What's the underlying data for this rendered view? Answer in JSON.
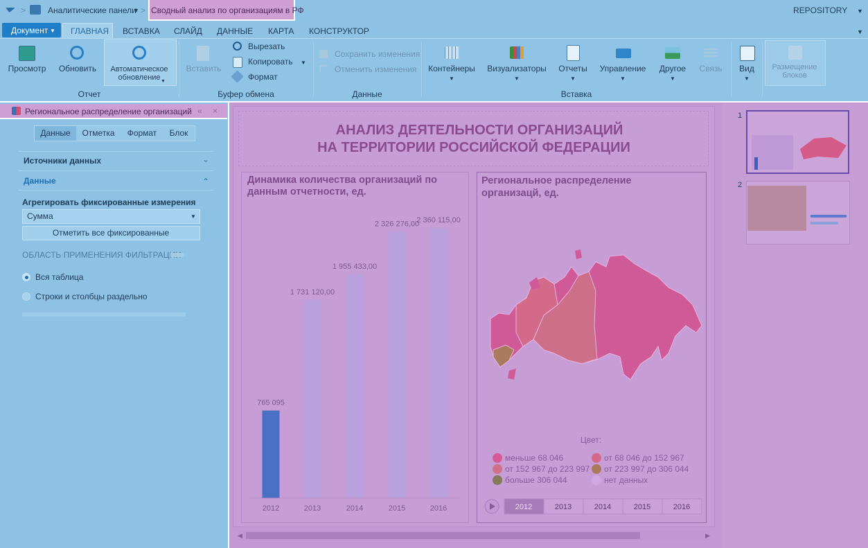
{
  "header": {
    "breadcrumb": [
      "Аналитические панели",
      "Сводный анализ по организациям в РФ"
    ],
    "repository": "REPOSITORY"
  },
  "ribbon": {
    "document": "Документ",
    "tabs": [
      "ГЛАВНАЯ",
      "ВСТАВКА",
      "СЛАЙД",
      "ДАННЫЕ",
      "КАРТА",
      "КОНСТРУКТОР"
    ],
    "groups": [
      {
        "label": "Отчет",
        "buttons": [
          "Просмотр",
          "Обновить",
          "Автоматическое обновление"
        ]
      },
      {
        "label": "Буфер обмена",
        "buttons": [
          "Вставить",
          "Вырезать",
          "Копировать",
          "Формат"
        ]
      },
      {
        "label": "Данные",
        "buttons": [
          "Сохранить изменения",
          "Отменить изменения"
        ]
      },
      {
        "label": "Вставка",
        "buttons": [
          "Контейнеры",
          "Визуализаторы",
          "Отчеты",
          "Управление",
          "Другое",
          "Связь"
        ]
      },
      {
        "buttons": [
          "Вид",
          "Размещение блоков"
        ]
      }
    ]
  },
  "panel": {
    "title": "Региональное распределение организаций",
    "tabs": [
      "Данные",
      "Отметка",
      "Формат",
      "Блок"
    ],
    "sections": [
      "Источники данных",
      "Данные"
    ],
    "aggregate_label": "Агрегировать фиксированные измерения",
    "aggregate_value": "Сумма",
    "mark_all": "Отметить все фиксированные",
    "filter_scope": "ОБЛАСТЬ ПРИМЕНЕНИЯ ФИЛЬТРАЦИИ",
    "options": [
      "Вся таблица",
      "Строки и столбцы раздельно"
    ]
  },
  "slide": {
    "title": [
      "АНАЛИЗ ДЕЯТЕЛЬНОСТИ ОРГАНИЗАЦИЙ",
      "НА ТЕРРИТОРИИ РОССИЙСКОЙ ФЕДЕРАЦИИ"
    ],
    "map": {
      "title": "Региональное распределение организацй, ед.",
      "legend_title": "Цвет:",
      "legend": [
        {
          "name": "меньше 68 046",
          "color": "#d65a98"
        },
        {
          "name": "от 68 046 до 152 967",
          "color": "#d46a8a"
        },
        {
          "name": "от 152 967 до 223 997",
          "color": "#cf6f88"
        },
        {
          "name": "от 223 997 до 306 044",
          "color": "#a97a5c"
        },
        {
          "name": "больше 306 044",
          "color": "#827a58"
        },
        {
          "name": "нет данных",
          "color": "#d0a9e2"
        }
      ],
      "years": [
        "2012",
        "2013",
        "2014",
        "2015",
        "2016"
      ]
    },
    "thumbnails": [
      "1",
      "2"
    ]
  },
  "chart_data": {
    "type": "bar",
    "title": "Динамика количества организаций по данным отчетности, ед.",
    "categories": [
      "2012",
      "2013",
      "2014",
      "2015",
      "2016"
    ],
    "values": [
      765095,
      1731120,
      1955433,
      2326276,
      2360115
    ],
    "value_labels": [
      "765 095",
      "1 731 120,00",
      "1 955 433,00",
      "2 326 276,00",
      "2 360 115,00"
    ],
    "colors": [
      "#4a70c4",
      "#b9a2dd",
      "#b9a2dd",
      "#b9a2dd",
      "#b9a2dd"
    ]
  }
}
